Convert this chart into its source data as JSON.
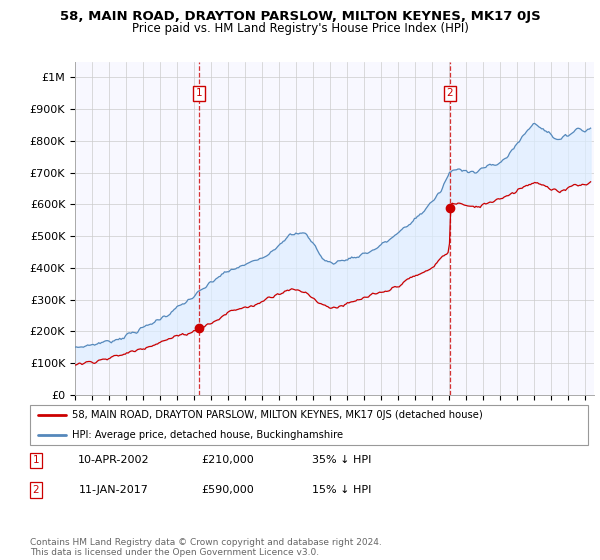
{
  "title": "58, MAIN ROAD, DRAYTON PARSLOW, MILTON KEYNES, MK17 0JS",
  "subtitle": "Price paid vs. HM Land Registry's House Price Index (HPI)",
  "ylabel_ticks": [
    "£0",
    "£100K",
    "£200K",
    "£300K",
    "£400K",
    "£500K",
    "£600K",
    "£700K",
    "£800K",
    "£900K",
    "£1M"
  ],
  "ytick_values": [
    0,
    100000,
    200000,
    300000,
    400000,
    500000,
    600000,
    700000,
    800000,
    900000,
    1000000
  ],
  "ylim": [
    0,
    1050000
  ],
  "xlim_start": 1995.0,
  "xlim_end": 2025.5,
  "sale1_date": 2002.27,
  "sale1_price": 210000,
  "sale2_date": 2017.04,
  "sale2_price": 590000,
  "sale_color": "#cc0000",
  "hpi_color": "#5588bb",
  "fill_color": "#ddeeff",
  "fill_alpha": 0.7,
  "vline_color": "#cc0000",
  "legend_line1": "58, MAIN ROAD, DRAYTON PARSLOW, MILTON KEYNES, MK17 0JS (detached house)",
  "legend_line2": "HPI: Average price, detached house, Buckinghamshire",
  "table_row1": [
    "1",
    "10-APR-2002",
    "£210,000",
    "35% ↓ HPI"
  ],
  "table_row2": [
    "2",
    "11-JAN-2017",
    "£590,000",
    "15% ↓ HPI"
  ],
  "footer": "Contains HM Land Registry data © Crown copyright and database right 2024.\nThis data is licensed under the Open Government Licence v3.0.",
  "grid_color": "#cccccc",
  "ax_bg_color": "#f8f8ff"
}
